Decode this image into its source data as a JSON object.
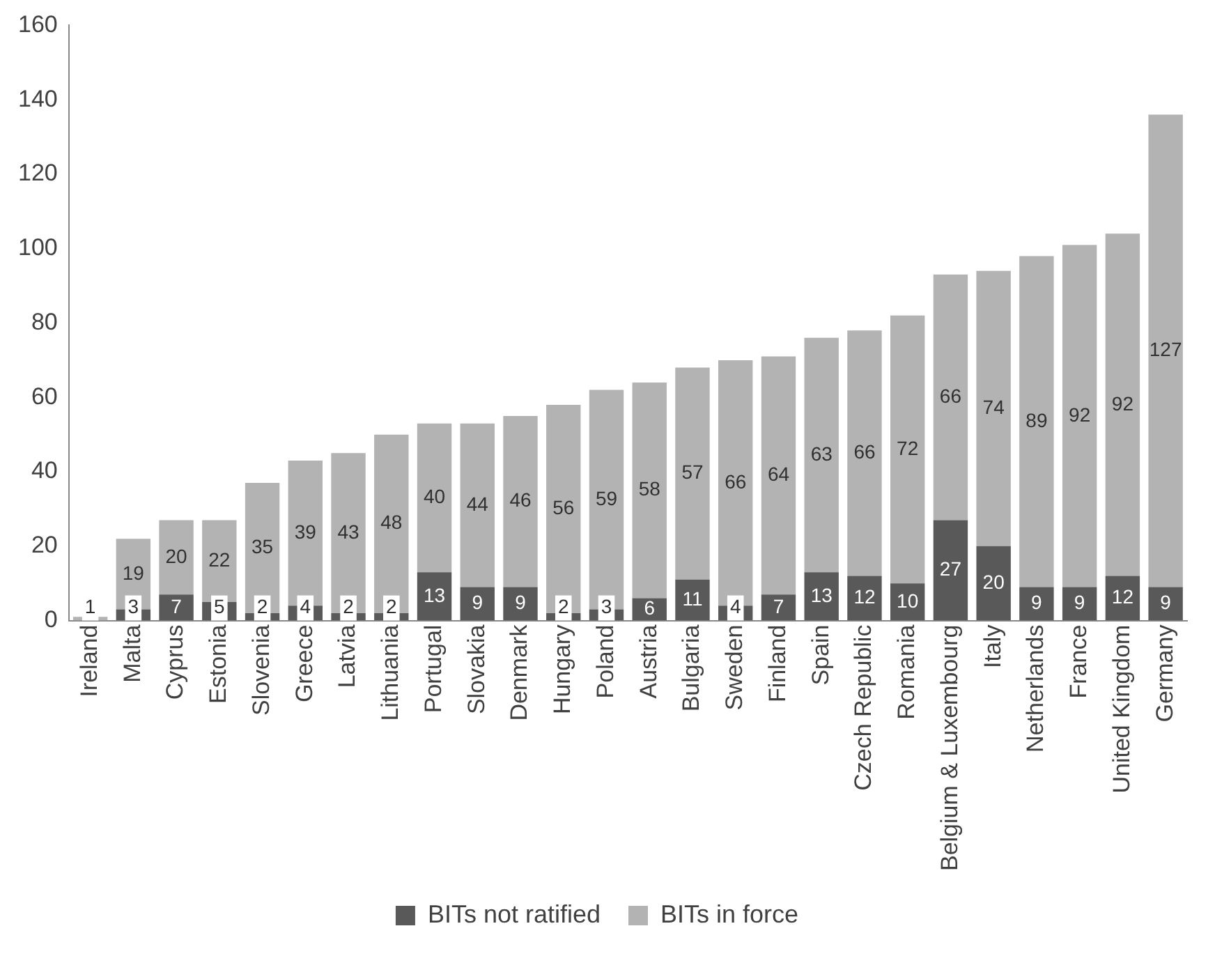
{
  "chart_data": {
    "type": "bar",
    "stacked": true,
    "categories": [
      "Ireland",
      "Malta",
      "Cyprus",
      "Estonia",
      "Slovenia",
      "Greece",
      "Latvia",
      "Lithuania",
      "Portugal",
      "Slovakia",
      "Denmark",
      "Hungary",
      "Poland",
      "Austria",
      "Bulgaria",
      "Sweden",
      "Finland",
      "Spain",
      "Czech Republic",
      "Romania",
      "Belgium & Luxembourg",
      "Italy",
      "Netherlands",
      "France",
      "United Kingdom",
      "Germany"
    ],
    "series": [
      {
        "name": "BITs not ratified",
        "color": "#595959",
        "values": [
          null,
          3,
          7,
          5,
          2,
          4,
          2,
          2,
          13,
          9,
          9,
          2,
          3,
          6,
          11,
          4,
          7,
          13,
          12,
          10,
          27,
          20,
          9,
          9,
          12,
          9
        ]
      },
      {
        "name": "BITs in force",
        "color": "#b3b3b3",
        "values": [
          1,
          19,
          20,
          22,
          35,
          39,
          43,
          48,
          40,
          44,
          46,
          56,
          59,
          58,
          57,
          66,
          64,
          63,
          66,
          72,
          66,
          74,
          89,
          92,
          92,
          127
        ]
      }
    ],
    "ylim": [
      0,
      160
    ],
    "yticks": [
      0,
      20,
      40,
      60,
      80,
      100,
      120,
      140,
      160
    ],
    "grid": false,
    "legend": "bottom",
    "data_labels": true
  }
}
